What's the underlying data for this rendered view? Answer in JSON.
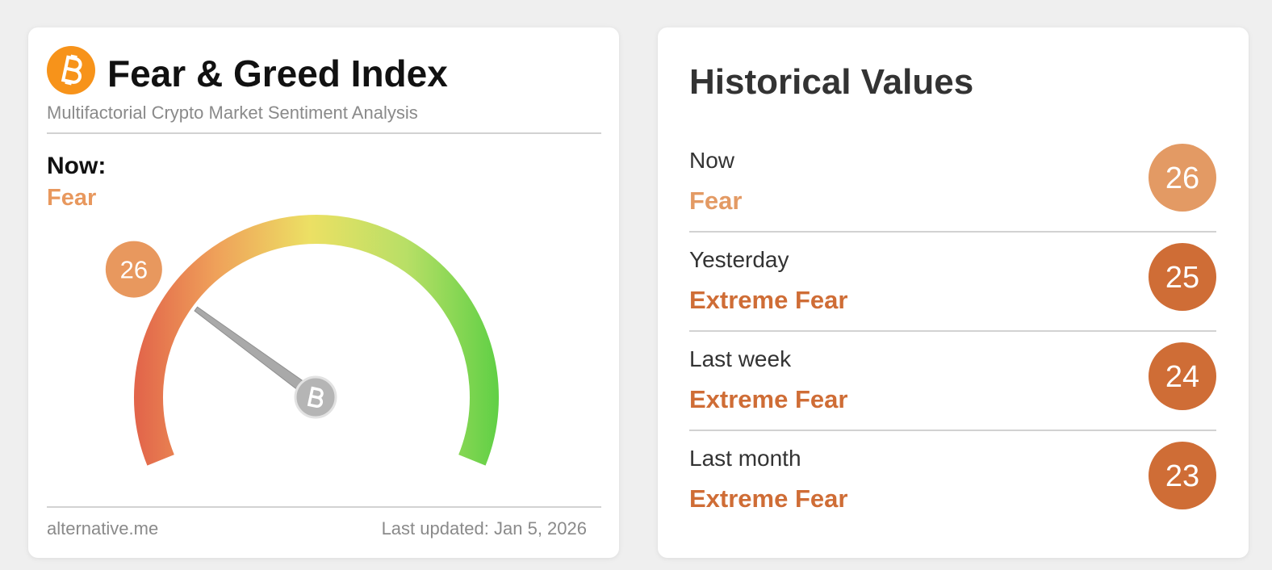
{
  "left_card": {
    "title": "Fear & Greed Index",
    "subtitle": "Multifactorial Crypto Market Sentiment Analysis",
    "now_label": "Now:",
    "now_classification": "Fear",
    "now_color": "#e8985e",
    "gauge": {
      "value": 26,
      "range": [
        0,
        100
      ]
    },
    "footer_source": "alternative.me",
    "footer_updated": "Last updated: Jan 5, 2026"
  },
  "right_card": {
    "title": "Historical Values",
    "rows": [
      {
        "label": "Now",
        "classification": "Fear",
        "value": 26,
        "color": "#e39a64"
      },
      {
        "label": "Yesterday",
        "classification": "Extreme Fear",
        "value": 25,
        "color": "#cf6d36"
      },
      {
        "label": "Last week",
        "classification": "Extreme Fear",
        "value": 24,
        "color": "#cf6d36"
      },
      {
        "label": "Last month",
        "classification": "Extreme Fear",
        "value": 23,
        "color": "#cf6d36"
      }
    ]
  }
}
